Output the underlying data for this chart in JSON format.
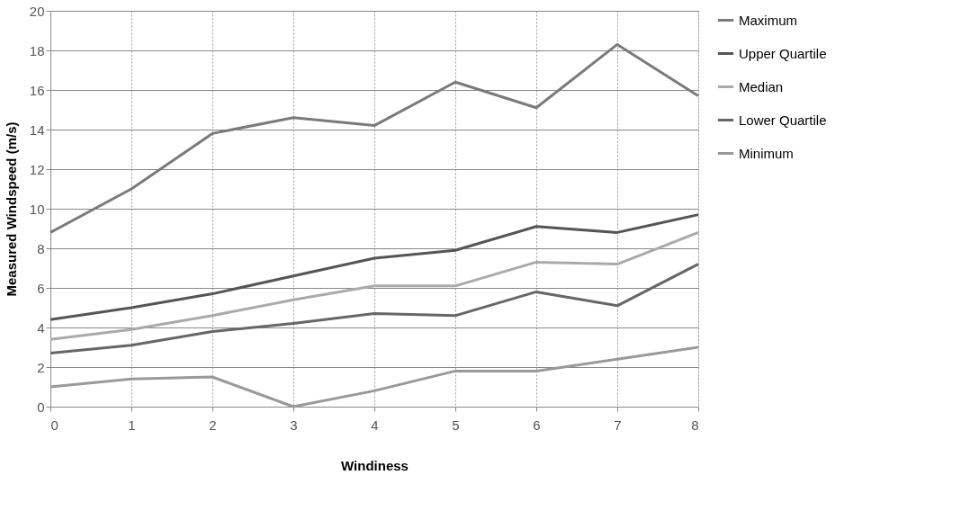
{
  "chart_data": {
    "type": "line",
    "xlabel": "Windiness",
    "ylabel": "Measured Windspeed (m/s)",
    "x": [
      0,
      1,
      2,
      3,
      4,
      5,
      6,
      7,
      8
    ],
    "xlim": [
      0,
      8
    ],
    "xticks": [
      0,
      1,
      2,
      3,
      4,
      5,
      6,
      7,
      8
    ],
    "ylim": [
      0,
      20
    ],
    "yticks": [
      0,
      2,
      4,
      6,
      8,
      10,
      12,
      14,
      16,
      18,
      20
    ],
    "grid": true,
    "legend": "right",
    "marker": "none",
    "line_style": "solid",
    "series": [
      {
        "name": "Maximum",
        "color": "#7a7a7a",
        "values": [
          8.8,
          11.0,
          13.8,
          14.6,
          14.2,
          16.4,
          15.1,
          18.3,
          15.7
        ]
      },
      {
        "name": "Upper Quartile",
        "color": "#555555",
        "values": [
          4.4,
          5.0,
          5.7,
          6.6,
          7.5,
          7.9,
          9.1,
          8.8,
          9.7
        ]
      },
      {
        "name": "Median",
        "color": "#aaaaaa",
        "values": [
          3.4,
          3.9,
          4.6,
          5.4,
          6.1,
          6.1,
          7.3,
          7.2,
          8.8
        ]
      },
      {
        "name": "Lower Quartile",
        "color": "#666666",
        "values": [
          2.7,
          3.1,
          3.8,
          4.2,
          4.7,
          4.6,
          5.8,
          5.1,
          7.2
        ]
      },
      {
        "name": "Minimum",
        "color": "#999999",
        "values": [
          1.0,
          1.4,
          1.5,
          0.0,
          0.8,
          1.8,
          1.8,
          2.4,
          3.0
        ]
      }
    ]
  }
}
